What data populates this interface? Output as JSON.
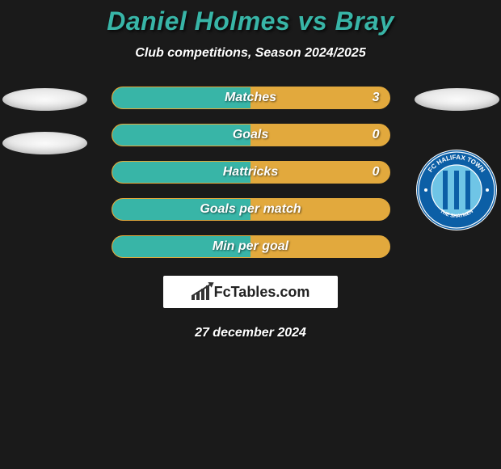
{
  "title_text": "Daniel Holmes vs Bray",
  "title_color": "#38b5a7",
  "subtitle": "Club competitions, Season 2024/2025",
  "background_color": "#1a1a1a",
  "text_color": "#ffffff",
  "left_column": {
    "ellipse1_color": "#ececec",
    "ellipse2_color": "#ececec"
  },
  "right_column": {
    "ellipse_color": "#ececec",
    "badge": {
      "outer_ring_color": "#0c5fa6",
      "inner_circle_color": "#6fc5e6",
      "stripe_color": "#0c5fa6",
      "top_text": "FC HALIFAX TOWN",
      "bottom_text": "THE SHAYMEN",
      "text_color": "#ffffff"
    }
  },
  "stats": [
    {
      "label": "Matches",
      "value": "3",
      "border_color": "#e2a93d",
      "left_fill_color": "#38b5a7",
      "right_fill_color": "#e2a93d",
      "left_pct": 50,
      "right_pct": 50
    },
    {
      "label": "Goals",
      "value": "0",
      "border_color": "#e2a93d",
      "left_fill_color": "#38b5a7",
      "right_fill_color": "#e2a93d",
      "left_pct": 50,
      "right_pct": 50
    },
    {
      "label": "Hattricks",
      "value": "0",
      "border_color": "#e2a93d",
      "left_fill_color": "#38b5a7",
      "right_fill_color": "#e2a93d",
      "left_pct": 50,
      "right_pct": 50
    },
    {
      "label": "Goals per match",
      "value": "",
      "border_color": "#e2a93d",
      "left_fill_color": "#38b5a7",
      "right_fill_color": "#e2a93d",
      "left_pct": 50,
      "right_pct": 50
    },
    {
      "label": "Min per goal",
      "value": "",
      "border_color": "#e2a93d",
      "left_fill_color": "#38b5a7",
      "right_fill_color": "#e2a93d",
      "left_pct": 50,
      "right_pct": 50
    }
  ],
  "footer": {
    "brand_text": "FcTables.com",
    "brand_bg": "#ffffff",
    "brand_text_color": "#222222",
    "date": "27 december 2024"
  }
}
